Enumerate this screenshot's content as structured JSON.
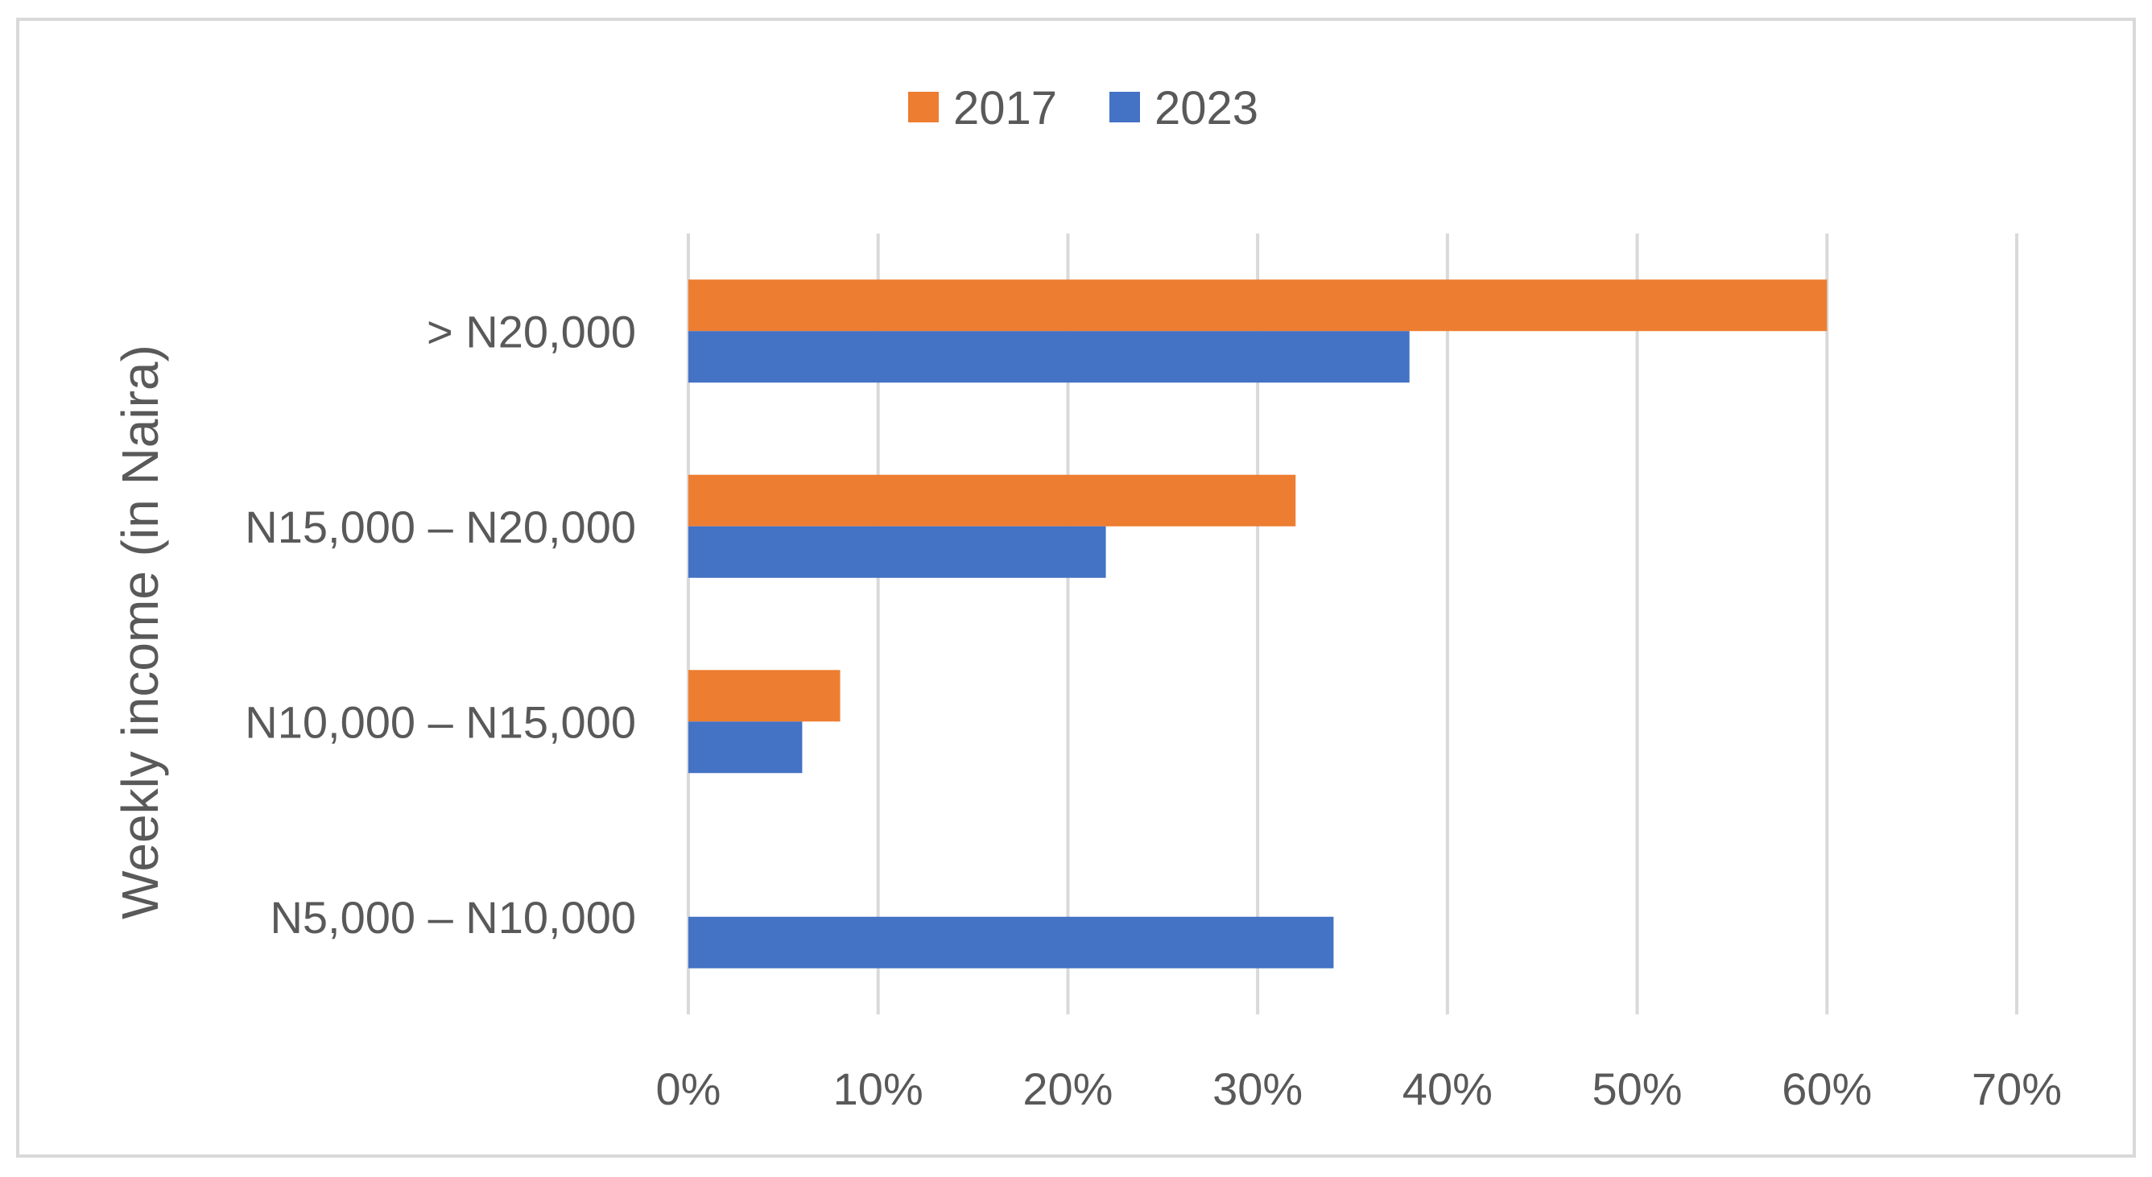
{
  "chart_data": {
    "type": "bar",
    "orientation": "horizontal",
    "title": "",
    "xlabel": "",
    "ylabel": "Weekly income (in Naira)",
    "categories": [
      "> N20,000",
      "N15,000 – N20,000",
      "N10,000 – N15,000",
      "N5,000 – N10,000"
    ],
    "series": [
      {
        "name": "2017",
        "color": "#ED7D31",
        "values": [
          60,
          32,
          8,
          0
        ]
      },
      {
        "name": "2023",
        "color": "#4472C4",
        "values": [
          38,
          22,
          6,
          34
        ]
      }
    ],
    "xlim": [
      0,
      70
    ],
    "xticks": [
      0,
      10,
      20,
      30,
      40,
      50,
      60,
      70
    ],
    "xtick_labels": [
      "0%",
      "10%",
      "20%",
      "30%",
      "40%",
      "50%",
      "60%",
      "70%"
    ],
    "grid": true,
    "legend": "top-center"
  }
}
